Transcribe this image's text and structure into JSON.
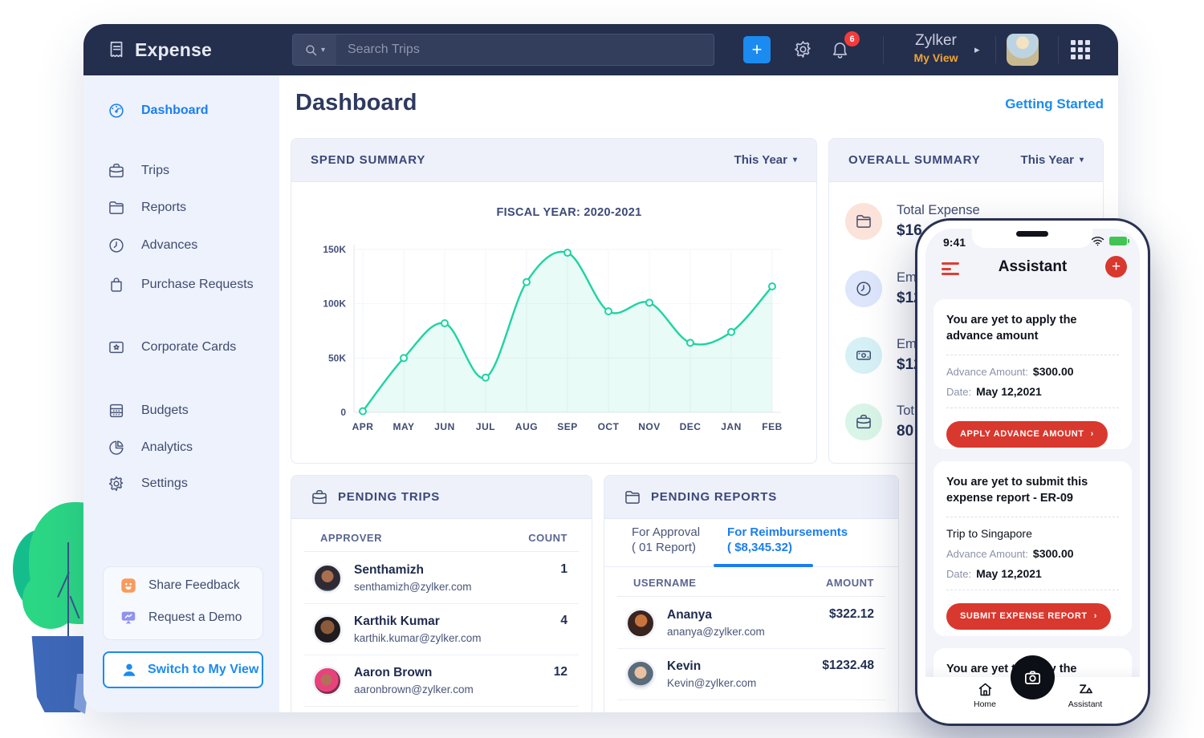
{
  "icons": {
    "chevron_down": "▾",
    "caret_right": "▸",
    "chevron_right": "›",
    "plus": "+"
  },
  "colors": {
    "accent_blue": "#1b8bf0",
    "navy": "#242e4d",
    "green_line": "#1fd3a2",
    "red": "#d8382e",
    "orange": "#f0a431"
  },
  "navbar": {
    "app_name": "Expense",
    "search_placeholder": "Search Trips",
    "notification_count": "6",
    "org_name": "Zylker",
    "view_label": "My View"
  },
  "sidebar": {
    "items": [
      {
        "label": "Dashboard"
      },
      {
        "label": "Trips"
      },
      {
        "label": "Reports"
      },
      {
        "label": "Advances"
      },
      {
        "label": "Purchase Requests"
      },
      {
        "label": "Corporate Cards"
      },
      {
        "label": "Budgets"
      },
      {
        "label": "Analytics"
      },
      {
        "label": "Settings"
      }
    ],
    "feedback": {
      "share": "Share Feedback",
      "demo": "Request a Demo"
    },
    "switch_label": "Switch to My View"
  },
  "main": {
    "title": "Dashboard",
    "getting_started": "Getting Started"
  },
  "spend_summary": {
    "title": "SPEND SUMMARY",
    "period": "This Year"
  },
  "chart_data": {
    "type": "line",
    "title": "FISCAL YEAR: 2020-2021",
    "categories": [
      "APR",
      "MAY",
      "JUN",
      "JUL",
      "AUG",
      "SEP",
      "OCT",
      "NOV",
      "DEC",
      "JAN",
      "FEB"
    ],
    "values": [
      1000,
      50000,
      82000,
      32000,
      120000,
      147000,
      93000,
      101000,
      64000,
      74000,
      116000
    ],
    "ylim": [
      0,
      150000
    ],
    "yticks": [
      "0",
      "50K",
      "100K",
      "150K"
    ],
    "grid": true,
    "legend": false,
    "line_color": "#1fd3a2",
    "fill_color": "rgba(31,211,162,0.10)"
  },
  "overall_summary": {
    "title": "OVERALL SUMMARY",
    "period": "This Year",
    "rows": [
      {
        "label": "Total Expense",
        "value": "$16",
        "circle": "#fbe3da"
      },
      {
        "label": "Em",
        "value": "$12",
        "circle": "#dde6fb"
      },
      {
        "label": "Em",
        "value": "$12",
        "circle": "#d6f1f6"
      },
      {
        "label": "Tot",
        "value": "80",
        "circle": "#d9f5e7"
      }
    ]
  },
  "pending_trips": {
    "title": "PENDING TRIPS",
    "columns": [
      "APPROVER",
      "COUNT"
    ],
    "rows": [
      {
        "name": "Senthamizh",
        "email": "senthamizh@zylker.com",
        "count": "1"
      },
      {
        "name": "Karthik Kumar",
        "email": "karthik.kumar@zylker.com",
        "count": "4"
      },
      {
        "name": "Aaron Brown",
        "email": "aaronbrown@zylker.com",
        "count": "12"
      }
    ]
  },
  "pending_reports": {
    "title": "PENDING REPORTS",
    "tabs": [
      {
        "label": "For Approval",
        "sub": "( 01 Report)"
      },
      {
        "label": "For Reimbursements",
        "sub": "( $8,345.32)"
      }
    ],
    "columns": [
      "USERNAME",
      "AMOUNT"
    ],
    "rows": [
      {
        "name": "Ananya",
        "email": "ananya@zylker.com",
        "amount": "$322.12"
      },
      {
        "name": "Kevin",
        "email": "Kevin@zylker.com",
        "amount": "$1232.48"
      }
    ]
  },
  "phone": {
    "time": "9:41",
    "title": "Assistant",
    "cards": [
      {
        "title": "You are yet to apply the advance amount",
        "fields": [
          {
            "label": "Advance Amount:",
            "value": "$300.00"
          },
          {
            "label": "Date:",
            "value": "May 12,2021"
          }
        ],
        "button": "APPLY ADVANCE AMOUNT"
      },
      {
        "title": "You are yet to submit this expense report - ER-09",
        "subtitle": "Trip to Singapore",
        "fields": [
          {
            "label": "Advance Amount:",
            "value": "$300.00"
          },
          {
            "label": "Date:",
            "value": "May 12,2021"
          }
        ],
        "button": "SUBMIT EXPENSE REPORT"
      },
      {
        "title": "You are yet to apply the advance amount"
      }
    ],
    "nav": {
      "home": "Home",
      "assistant": "Assistant"
    }
  }
}
